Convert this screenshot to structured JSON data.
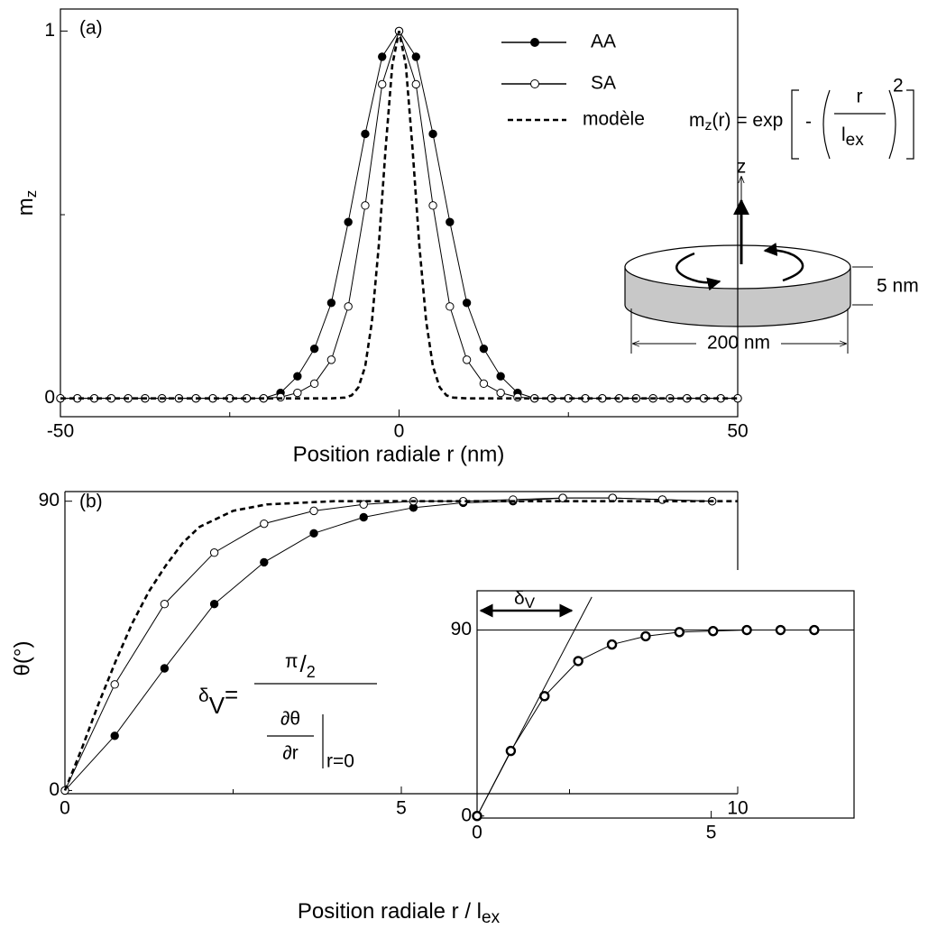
{
  "chart_data": [
    {
      "type": "line",
      "panel_label": "(a)",
      "x_label": "Position radiale r (nm)",
      "y_label": "m",
      "y_label_sub": "z",
      "xlim": [
        -50,
        50
      ],
      "ylim": [
        -0.05,
        1.06
      ],
      "xticks": [
        -50,
        0,
        50
      ],
      "yticks": [
        0,
        1
      ],
      "minor_xticks": [
        -25,
        25
      ],
      "minor_yticks": [
        0.5
      ],
      "legend": "top",
      "x": [
        -50,
        -47.5,
        -45,
        -42.5,
        -40,
        -37.5,
        -35,
        -32.5,
        -30,
        -27.5,
        -25,
        -22.5,
        -20,
        -17.5,
        -15,
        -12.5,
        -10,
        -7.5,
        -5,
        -2.5,
        0,
        2.5,
        5,
        7.5,
        10,
        12.5,
        15,
        17.5,
        20,
        22.5,
        25,
        27.5,
        30,
        32.5,
        35,
        37.5,
        40,
        42.5,
        45,
        47.5,
        50
      ],
      "series": [
        {
          "name": "AA",
          "color": "#000000",
          "marker": "filled",
          "values": [
            0,
            0,
            0,
            0,
            0,
            0,
            0,
            0,
            0,
            0,
            0,
            0,
            0,
            0.015,
            0.06,
            0.135,
            0.26,
            0.48,
            0.72,
            0.93,
            1,
            0.93,
            0.72,
            0.48,
            0.26,
            0.135,
            0.06,
            0.015,
            0,
            0,
            0,
            0,
            0,
            0,
            0,
            0,
            0,
            0,
            0,
            0,
            0
          ]
        },
        {
          "name": "SA",
          "color": "#000000",
          "marker": "open",
          "values": [
            0,
            0,
            0,
            0,
            0,
            0,
            0,
            0,
            0,
            0,
            0,
            0,
            0,
            0.003,
            0.015,
            0.04,
            0.105,
            0.25,
            0.525,
            0.855,
            1,
            0.855,
            0.525,
            0.25,
            0.105,
            0.04,
            0.015,
            0.003,
            0,
            0,
            0,
            0,
            0,
            0,
            0,
            0,
            0,
            0,
            0,
            0,
            0
          ]
        },
        {
          "name": "modèle",
          "color": "#000000",
          "marker": "none",
          "dash": true,
          "x": [
            -50,
            -10,
            -8,
            -7,
            -6,
            -5,
            -4,
            -3,
            -2,
            -1,
            0,
            1,
            2,
            3,
            4,
            5,
            6,
            7,
            8,
            10,
            50
          ],
          "values": [
            0,
            0,
            0.002,
            0.008,
            0.03,
            0.087,
            0.21,
            0.415,
            0.677,
            0.907,
            1,
            0.907,
            0.677,
            0.415,
            0.21,
            0.087,
            0.03,
            0.008,
            0.002,
            0,
            0
          ]
        }
      ],
      "formula": {
        "lhs": "m",
        "lhs_sub": "z",
        "mid": "(r) =  exp",
        "minus": "-",
        "num": "r",
        "den": "l",
        "den_sub": "ex",
        "power": "2"
      },
      "diagram": {
        "axis": "z",
        "thickness": "5 nm",
        "diameter": "200 nm"
      }
    },
    {
      "type": "line",
      "panel_label": "(b)",
      "x_label": "Position radiale  r / l",
      "x_label_sub": "ex",
      "y_label": "θ(°)",
      "xlim": [
        0,
        10
      ],
      "ylim": [
        -1,
        93
      ],
      "xticks": [
        0,
        5,
        10
      ],
      "yticks": [
        0,
        90
      ],
      "minor_xticks": [
        2.5,
        7.5
      ],
      "x": [
        0,
        0.74,
        1.48,
        2.22,
        2.96,
        3.7,
        4.44,
        5.18,
        5.92,
        6.66,
        7.4,
        8.14,
        8.88,
        9.62
      ],
      "series": [
        {
          "color": "#000000",
          "marker": "filled",
          "values": [
            0,
            17,
            38,
            58,
            71,
            80,
            85,
            88,
            89.5,
            90,
            91,
            91,
            90.5,
            90
          ]
        },
        {
          "color": "#000000",
          "marker": "open",
          "values": [
            0,
            33,
            58,
            74,
            83,
            87,
            89,
            90,
            90,
            90.5,
            91,
            91,
            90.5,
            90
          ]
        },
        {
          "color": "#000000",
          "marker": "none",
          "dash": true,
          "x": [
            0,
            0.25,
            0.5,
            0.75,
            1,
            1.25,
            1.5,
            1.75,
            2,
            2.5,
            3,
            4,
            10
          ],
          "values": [
            0,
            13,
            27,
            40,
            52,
            62,
            70,
            77,
            82,
            87,
            89,
            90,
            90
          ]
        }
      ],
      "formula": {
        "delta": "δ",
        "delta_sub": "V",
        "equals": "=",
        "pi": "π",
        "slash": "/",
        "two": "2",
        "dtheta": "∂θ",
        "dr": "∂r",
        "at": "r=0"
      }
    },
    {
      "type": "line",
      "xlim": [
        0,
        8.05
      ],
      "ylim": [
        -1,
        109
      ],
      "xticks": [
        0,
        5
      ],
      "yticks": [
        0,
        90
      ],
      "x": [
        0,
        0.72,
        1.44,
        2.16,
        2.88,
        3.6,
        4.32,
        5.04,
        5.76,
        6.48,
        7.2
      ],
      "series": [
        {
          "color": "#000000",
          "marker": "open",
          "thick": true,
          "values": [
            0,
            31.5,
            58,
            75,
            83,
            87,
            89,
            89.5,
            90,
            90,
            90
          ]
        }
      ],
      "reference": 90,
      "tangent": {
        "x": [
          0,
          2.45
        ],
        "values": [
          0,
          106
        ]
      },
      "annotation": "δ",
      "annotation_sub": "V"
    }
  ]
}
